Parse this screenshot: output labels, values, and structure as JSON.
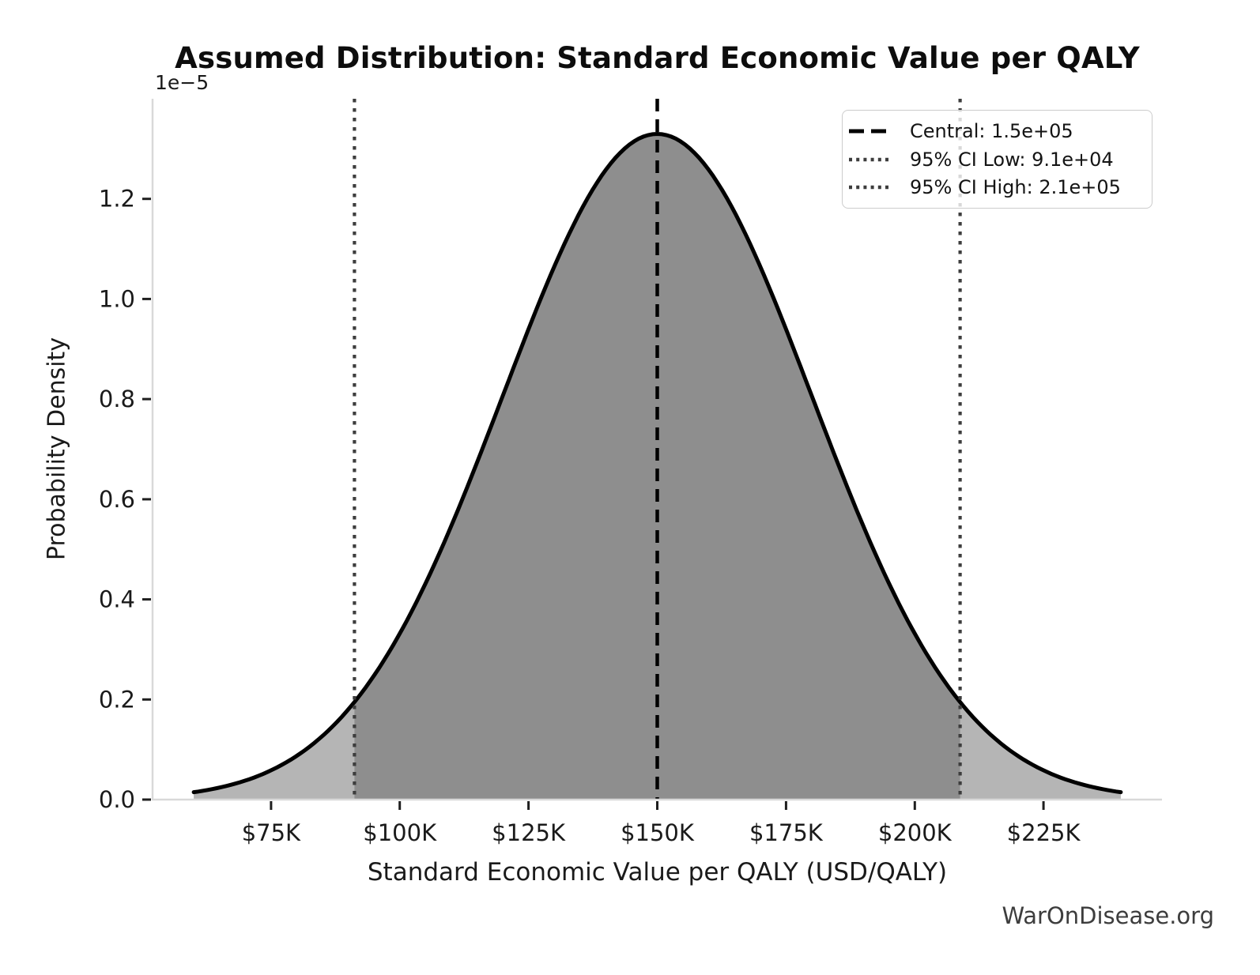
{
  "watermark": "WarOnDisease.org",
  "chart_data": {
    "type": "area",
    "title": "Assumed Distribution: Standard Economic Value per QALY",
    "xlabel": "Standard Economic Value per QALY (USD/QALY)",
    "ylabel": "Probability Density",
    "y_scale_offset_text": "1e−5",
    "grid": false,
    "distribution": {
      "shape": "normal",
      "mean": 150000,
      "sigma": 30000,
      "peak_density": 1.33e-05,
      "x_start": 60000,
      "x_end": 240000
    },
    "reference_lines": [
      {
        "id": "central",
        "value": 150000,
        "style": "dashed",
        "color": "#000000",
        "label": "Central: 1.5e+05"
      },
      {
        "id": "ci-low",
        "value": 91200,
        "style": "dotted",
        "color": "#3d3d3d",
        "label": "95% CI Low: 9.1e+04"
      },
      {
        "id": "ci-high",
        "value": 208800,
        "style": "dotted",
        "color": "#3d3d3d",
        "label": "95% CI High: 2.1e+05"
      }
    ],
    "xlim": [
      52000,
      248000
    ],
    "ylim": [
      0,
      1.4e-05
    ],
    "x_ticks": [
      {
        "value": 75000,
        "label": "$75K"
      },
      {
        "value": 100000,
        "label": "$100K"
      },
      {
        "value": 125000,
        "label": "$125K"
      },
      {
        "value": 150000,
        "label": "$150K"
      },
      {
        "value": 175000,
        "label": "$175K"
      },
      {
        "value": 200000,
        "label": "$200K"
      },
      {
        "value": 225000,
        "label": "$225K"
      }
    ],
    "y_ticks": [
      {
        "value": 0,
        "label": "0.0"
      },
      {
        "value": 2e-06,
        "label": "0.2"
      },
      {
        "value": 4e-06,
        "label": "0.4"
      },
      {
        "value": 6e-06,
        "label": "0.6"
      },
      {
        "value": 8e-06,
        "label": "0.8"
      },
      {
        "value": 1e-05,
        "label": "1.0"
      },
      {
        "value": 1.2e-05,
        "label": "1.2"
      }
    ],
    "legend": {
      "position": "upper right"
    },
    "colors": {
      "curve": "#000000",
      "fill": "#b5b5b5",
      "fill_ci_band": "#8e8e8e",
      "spine": "#d9d9d9",
      "tick": "#1f1f1f",
      "text": "#1a1a1a",
      "watermark": "#3d3d3d"
    }
  }
}
